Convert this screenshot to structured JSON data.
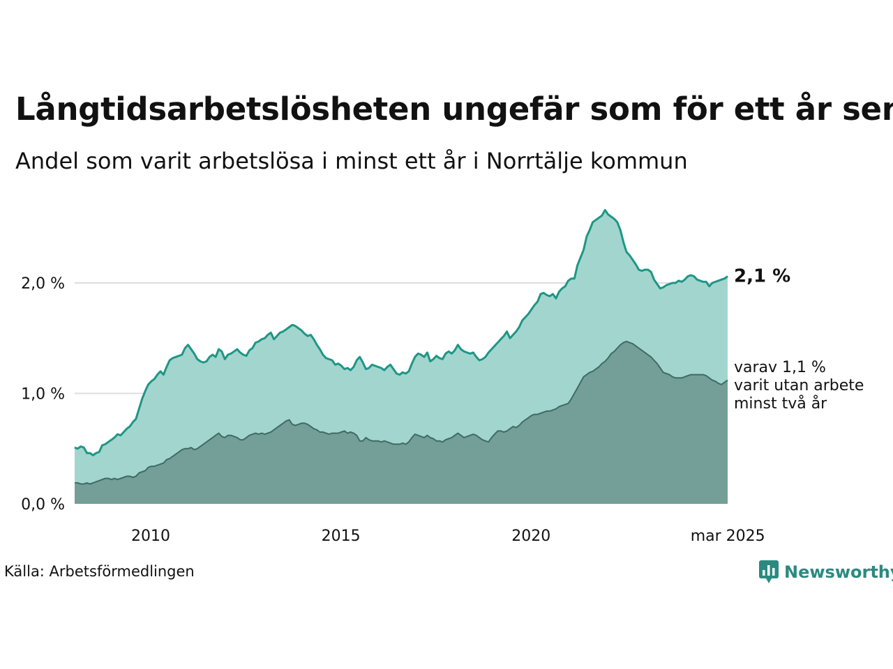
{
  "header": {
    "title": "Långtidsarbetslösheten ungefär som för ett år sen",
    "subtitle": "Andel som varit arbetslösa i minst ett år i Norrtälje kommun"
  },
  "footer": {
    "source": "Källa: Arbetsförmedlingen",
    "brand": "Newsworthy",
    "brand_icon": "bar-chart-logo-icon"
  },
  "colors": {
    "top_line": "#1e9685",
    "top_fill": "#a3d5cf",
    "bottom_line": "#3e6b65",
    "bottom_fill": "#739f98",
    "grid": "#dddddd",
    "brand": "#2a8a80"
  },
  "chart_data": {
    "type": "area",
    "title": "Långtidsarbetslösheten ungefär som för ett år sen",
    "subtitle": "Andel som varit arbetslösa i minst ett år i Norrtälje kommun",
    "x_start": "2008-01",
    "x_end": "2025-03",
    "frequency": "monthly",
    "x_ticks": [
      "2010",
      "2015",
      "2020",
      "mar 2025"
    ],
    "x_tick_values": [
      2010.0,
      2015.0,
      2020.0,
      2025.17
    ],
    "y_ticks": [
      "0,0 %",
      "1,0 %",
      "2,0 %"
    ],
    "y_tick_values": [
      0,
      1,
      2
    ],
    "ylim": [
      0,
      2.6
    ],
    "grid": "horizontal",
    "annotations": {
      "total_label": "2,1 %",
      "sub_label_lines": [
        "varav 1,1 %",
        "varit utan arbete",
        "minst två år"
      ]
    },
    "series": [
      {
        "key": "total",
        "values": [
          0.51,
          0.5,
          0.52,
          0.51,
          0.46,
          0.46,
          0.44,
          0.46,
          0.47,
          0.53,
          0.54,
          0.56,
          0.58,
          0.6,
          0.63,
          0.62,
          0.65,
          0.68,
          0.7,
          0.74,
          0.77,
          0.86,
          0.95,
          1.02,
          1.08,
          1.11,
          1.13,
          1.17,
          1.2,
          1.17,
          1.24,
          1.3,
          1.32,
          1.33,
          1.34,
          1.35,
          1.41,
          1.44,
          1.4,
          1.36,
          1.31,
          1.29,
          1.28,
          1.29,
          1.33,
          1.35,
          1.33,
          1.4,
          1.38,
          1.31,
          1.35,
          1.36,
          1.38,
          1.4,
          1.37,
          1.35,
          1.34,
          1.39,
          1.41,
          1.46,
          1.47,
          1.49,
          1.5,
          1.53,
          1.55,
          1.49,
          1.52,
          1.55,
          1.56,
          1.58,
          1.6,
          1.62,
          1.61,
          1.59,
          1.57,
          1.54,
          1.52,
          1.53,
          1.49,
          1.44,
          1.4,
          1.35,
          1.32,
          1.31,
          1.3,
          1.26,
          1.27,
          1.25,
          1.22,
          1.23,
          1.21,
          1.24,
          1.3,
          1.33,
          1.28,
          1.22,
          1.23,
          1.26,
          1.25,
          1.24,
          1.23,
          1.21,
          1.24,
          1.26,
          1.22,
          1.18,
          1.17,
          1.19,
          1.18,
          1.2,
          1.27,
          1.33,
          1.36,
          1.35,
          1.33,
          1.37,
          1.29,
          1.31,
          1.34,
          1.32,
          1.31,
          1.36,
          1.38,
          1.36,
          1.39,
          1.44,
          1.4,
          1.38,
          1.37,
          1.36,
          1.37,
          1.33,
          1.3,
          1.31,
          1.33,
          1.37,
          1.4,
          1.43,
          1.46,
          1.49,
          1.52,
          1.56,
          1.5,
          1.53,
          1.56,
          1.6,
          1.66,
          1.69,
          1.72,
          1.76,
          1.8,
          1.83,
          1.9,
          1.91,
          1.89,
          1.88,
          1.9,
          1.86,
          1.92,
          1.95,
          1.97,
          2.02,
          2.04,
          2.04,
          2.16,
          2.23,
          2.3,
          2.42,
          2.48,
          2.55,
          2.57,
          2.59,
          2.61,
          2.66,
          2.62,
          2.6,
          2.58,
          2.55,
          2.48,
          2.37,
          2.28,
          2.25,
          2.21,
          2.17,
          2.12,
          2.11,
          2.12,
          2.12,
          2.1,
          2.03,
          1.99,
          1.95,
          1.96,
          1.98,
          1.99,
          2.0,
          2.0,
          2.02,
          2.01,
          2.03,
          2.06,
          2.07,
          2.06,
          2.03,
          2.02,
          2.01,
          2.01,
          1.97,
          2.0,
          2.01,
          2.02,
          2.03,
          2.04,
          2.06
        ]
      },
      {
        "key": "over_two_years",
        "values": [
          0.19,
          0.19,
          0.18,
          0.18,
          0.19,
          0.18,
          0.19,
          0.2,
          0.21,
          0.22,
          0.23,
          0.23,
          0.22,
          0.23,
          0.22,
          0.23,
          0.24,
          0.25,
          0.25,
          0.24,
          0.25,
          0.28,
          0.29,
          0.3,
          0.33,
          0.34,
          0.34,
          0.35,
          0.36,
          0.37,
          0.4,
          0.41,
          0.43,
          0.45,
          0.47,
          0.49,
          0.5,
          0.5,
          0.51,
          0.49,
          0.5,
          0.52,
          0.54,
          0.56,
          0.58,
          0.6,
          0.62,
          0.64,
          0.61,
          0.6,
          0.62,
          0.62,
          0.61,
          0.6,
          0.58,
          0.58,
          0.6,
          0.62,
          0.63,
          0.64,
          0.63,
          0.64,
          0.63,
          0.64,
          0.65,
          0.67,
          0.69,
          0.71,
          0.73,
          0.75,
          0.76,
          0.72,
          0.71,
          0.72,
          0.73,
          0.73,
          0.72,
          0.7,
          0.68,
          0.67,
          0.65,
          0.65,
          0.64,
          0.63,
          0.64,
          0.64,
          0.64,
          0.65,
          0.66,
          0.64,
          0.65,
          0.64,
          0.62,
          0.57,
          0.57,
          0.6,
          0.58,
          0.57,
          0.57,
          0.57,
          0.56,
          0.57,
          0.56,
          0.55,
          0.54,
          0.54,
          0.54,
          0.55,
          0.54,
          0.56,
          0.6,
          0.63,
          0.62,
          0.61,
          0.6,
          0.62,
          0.6,
          0.59,
          0.57,
          0.57,
          0.56,
          0.58,
          0.59,
          0.6,
          0.62,
          0.64,
          0.62,
          0.6,
          0.61,
          0.62,
          0.63,
          0.62,
          0.6,
          0.58,
          0.57,
          0.56,
          0.6,
          0.63,
          0.66,
          0.66,
          0.65,
          0.66,
          0.68,
          0.7,
          0.69,
          0.71,
          0.74,
          0.76,
          0.78,
          0.8,
          0.81,
          0.81,
          0.82,
          0.83,
          0.84,
          0.84,
          0.85,
          0.86,
          0.88,
          0.89,
          0.9,
          0.91,
          0.95,
          1.0,
          1.05,
          1.1,
          1.15,
          1.17,
          1.19,
          1.2,
          1.22,
          1.24,
          1.27,
          1.29,
          1.32,
          1.36,
          1.38,
          1.41,
          1.44,
          1.46,
          1.47,
          1.46,
          1.45,
          1.43,
          1.41,
          1.39,
          1.37,
          1.35,
          1.33,
          1.3,
          1.27,
          1.23,
          1.19,
          1.18,
          1.17,
          1.15,
          1.14,
          1.14,
          1.14,
          1.15,
          1.16,
          1.17,
          1.17,
          1.17,
          1.17,
          1.17,
          1.16,
          1.14,
          1.12,
          1.11,
          1.09,
          1.08,
          1.1,
          1.12
        ]
      }
    ]
  }
}
